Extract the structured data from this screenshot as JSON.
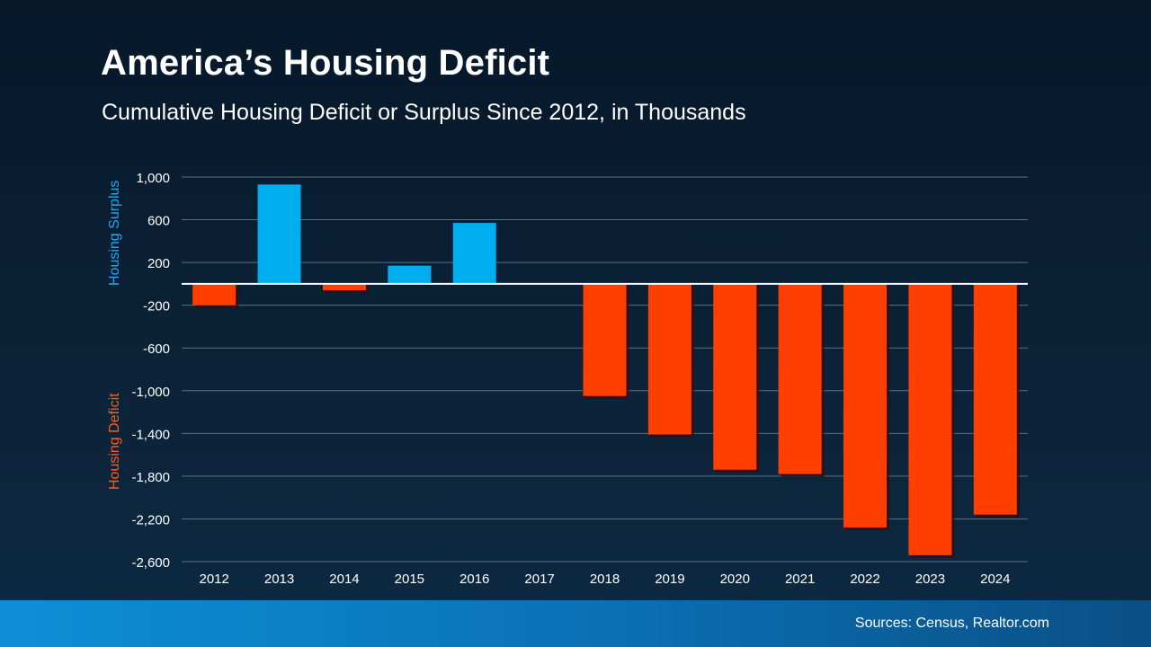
{
  "header": {
    "title": "America’s Housing Deficit",
    "subtitle": "Cumulative Housing Deficit or Surplus Since 2012, in Thousands"
  },
  "axis_side_labels": {
    "surplus": "Housing Surplus",
    "deficit": "Housing Deficit"
  },
  "footer": {
    "source": "Sources: Census, Realtor.com"
  },
  "colors": {
    "surplus": "#00aeef",
    "deficit": "#ff3f00",
    "grid": "#5c6f80",
    "zero_line": "#ffffff"
  },
  "chart_data": {
    "type": "bar",
    "categories": [
      "2012",
      "2013",
      "2014",
      "2015",
      "2016",
      "2017",
      "2018",
      "2019",
      "2020",
      "2021",
      "2022",
      "2023",
      "2024"
    ],
    "values": [
      -200,
      930,
      -60,
      170,
      570,
      0,
      -1050,
      -1410,
      -1740,
      -1780,
      -2280,
      -2540,
      -2160
    ],
    "ylim": [
      -2600,
      1000
    ],
    "yticks": [
      1000,
      600,
      200,
      -200,
      -600,
      -1000,
      -1400,
      -1800,
      -2200,
      -2600
    ],
    "ytick_labels": [
      "1,000",
      "600",
      "200",
      "-200",
      "-600",
      "-1,000",
      "-1,400",
      "-1,800",
      "-2,200",
      "-2,600"
    ],
    "grid": true
  }
}
